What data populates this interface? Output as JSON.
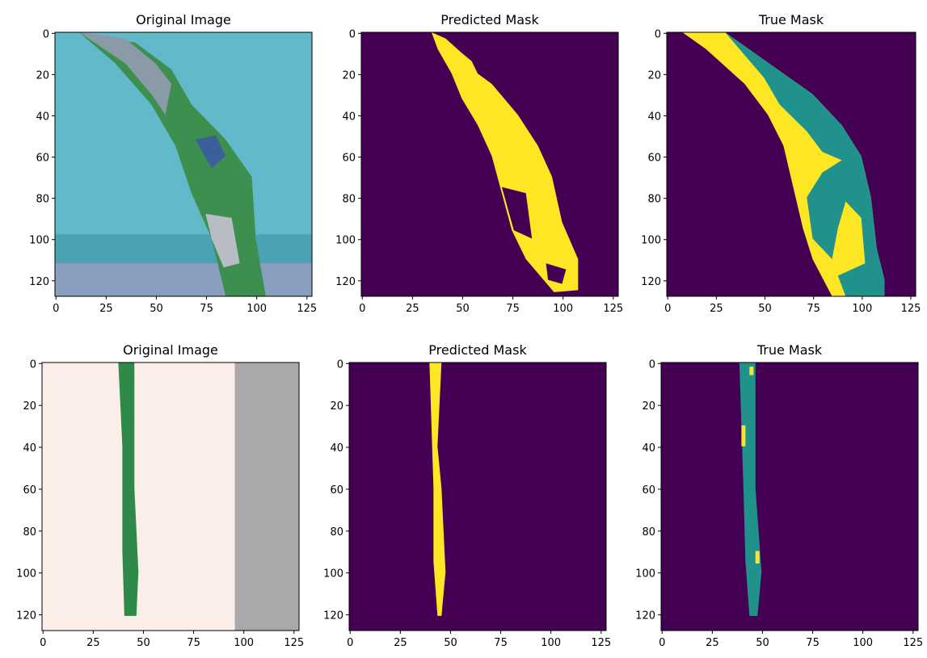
{
  "chart_data": [
    {
      "type": "image",
      "title": "Original Image",
      "xlim": [
        -0.5,
        127.5
      ],
      "ylim": [
        127.5,
        -0.5
      ],
      "xticks": [
        0,
        25,
        50,
        75,
        100,
        125
      ],
      "yticks": [
        0,
        20,
        40,
        60,
        80,
        100,
        120
      ]
    },
    {
      "type": "image",
      "title": "Predicted Mask",
      "xlim": [
        -0.5,
        127.5
      ],
      "ylim": [
        127.5,
        -0.5
      ],
      "xticks": [
        0,
        25,
        50,
        75,
        100,
        125
      ],
      "yticks": [
        0,
        20,
        40,
        60,
        80,
        100,
        120
      ]
    },
    {
      "type": "image",
      "title": "True Mask",
      "xlim": [
        -0.5,
        127.5
      ],
      "ylim": [
        127.5,
        -0.5
      ],
      "xticks": [
        0,
        25,
        50,
        75,
        100,
        125
      ],
      "yticks": [
        0,
        20,
        40,
        60,
        80,
        100,
        120
      ]
    },
    {
      "type": "image",
      "title": "Original Image",
      "xlim": [
        -0.5,
        127.5
      ],
      "ylim": [
        127.5,
        -0.5
      ],
      "xticks": [
        0,
        25,
        50,
        75,
        100,
        125
      ],
      "yticks": [
        0,
        20,
        40,
        60,
        80,
        100,
        120
      ]
    },
    {
      "type": "image",
      "title": "Predicted Mask",
      "xlim": [
        -0.5,
        127.5
      ],
      "ylim": [
        127.5,
        -0.5
      ],
      "xticks": [
        0,
        25,
        50,
        75,
        100,
        125
      ],
      "yticks": [
        0,
        20,
        40,
        60,
        80,
        100,
        120
      ]
    },
    {
      "type": "image",
      "title": "True Mask",
      "xlim": [
        -0.5,
        127.5
      ],
      "ylim": [
        127.5,
        -0.5
      ],
      "xticks": [
        0,
        25,
        50,
        75,
        100,
        125
      ],
      "yticks": [
        0,
        20,
        40,
        60,
        80,
        100,
        120
      ]
    }
  ]
}
